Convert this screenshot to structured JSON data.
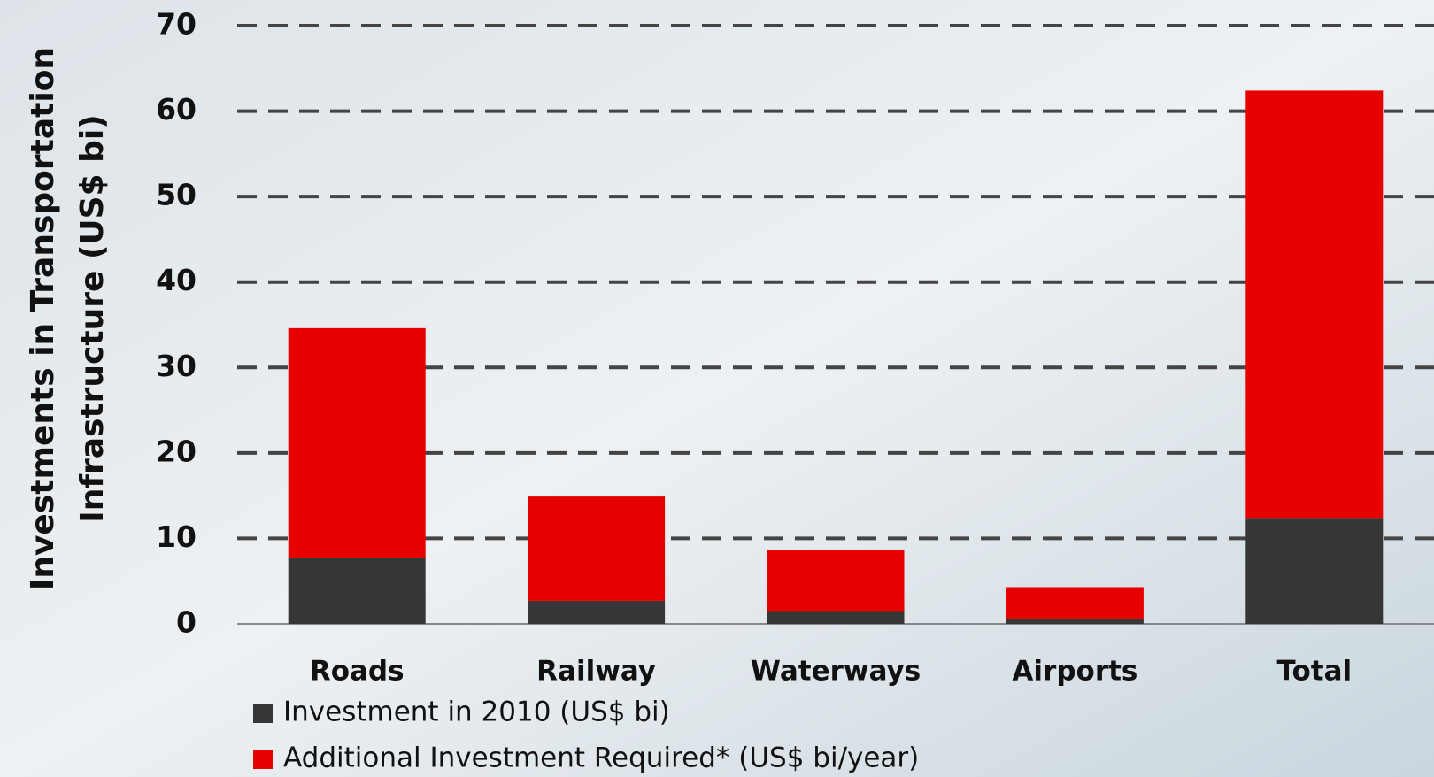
{
  "chart_data": {
    "type": "stacked_bar",
    "y_axis_label": [
      "Investments in Transportation",
      "Infrastructure (US$ bi)"
    ],
    "categories": [
      "Roads",
      "Railway",
      "Waterways",
      "Airports",
      "Total"
    ],
    "series": [
      {
        "name": "Investment in 2010 (US$ bi)",
        "color": "#363636",
        "values": [
          7.7,
          2.7,
          1.5,
          0.6,
          12.4
        ]
      },
      {
        "name": "Additional Investment Required* (US$ bi/year)",
        "color": "#e60000",
        "values": [
          26.9,
          12.2,
          7.2,
          3.7,
          50.0
        ]
      }
    ],
    "ylim": [
      0,
      70
    ],
    "yticks": [
      0,
      10,
      20,
      30,
      40,
      50,
      60,
      70
    ],
    "grid": true
  }
}
